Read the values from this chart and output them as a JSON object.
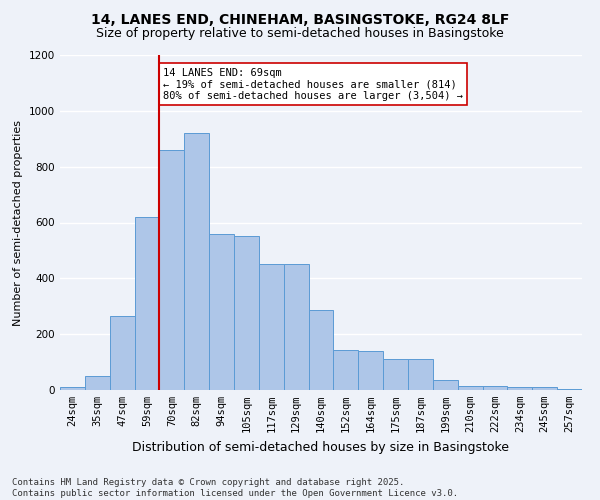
{
  "title1": "14, LANES END, CHINEHAM, BASINGSTOKE, RG24 8LF",
  "title2": "Size of property relative to semi-detached houses in Basingstoke",
  "xlabel": "Distribution of semi-detached houses by size in Basingstoke",
  "ylabel": "Number of semi-detached properties",
  "categories": [
    "24sqm",
    "35sqm",
    "47sqm",
    "59sqm",
    "70sqm",
    "82sqm",
    "94sqm",
    "105sqm",
    "117sqm",
    "129sqm",
    "140sqm",
    "152sqm",
    "164sqm",
    "175sqm",
    "187sqm",
    "199sqm",
    "210sqm",
    "222sqm",
    "234sqm",
    "245sqm",
    "257sqm"
  ],
  "values": [
    10,
    50,
    265,
    620,
    860,
    920,
    560,
    550,
    450,
    450,
    285,
    145,
    140,
    110,
    110,
    35,
    14,
    14,
    10,
    10,
    5
  ],
  "bar_color": "#aec6e8",
  "bar_edge_color": "#5b9bd5",
  "vline_color": "#cc0000",
  "vline_x_index": 3.5,
  "annotation_text": "14 LANES END: 69sqm\n← 19% of semi-detached houses are smaller (814)\n80% of semi-detached houses are larger (3,504) →",
  "annotation_box_color": "#ffffff",
  "annotation_box_edge": "#cc0000",
  "ylim": [
    0,
    1200
  ],
  "yticks": [
    0,
    200,
    400,
    600,
    800,
    1000,
    1200
  ],
  "footer": "Contains HM Land Registry data © Crown copyright and database right 2025.\nContains public sector information licensed under the Open Government Licence v3.0.",
  "bg_color": "#eef2f9",
  "grid_color": "#ffffff",
  "title1_fontsize": 10,
  "title2_fontsize": 9,
  "xlabel_fontsize": 9,
  "ylabel_fontsize": 8,
  "tick_fontsize": 7.5,
  "footer_fontsize": 6.5,
  "annot_fontsize": 7.5
}
